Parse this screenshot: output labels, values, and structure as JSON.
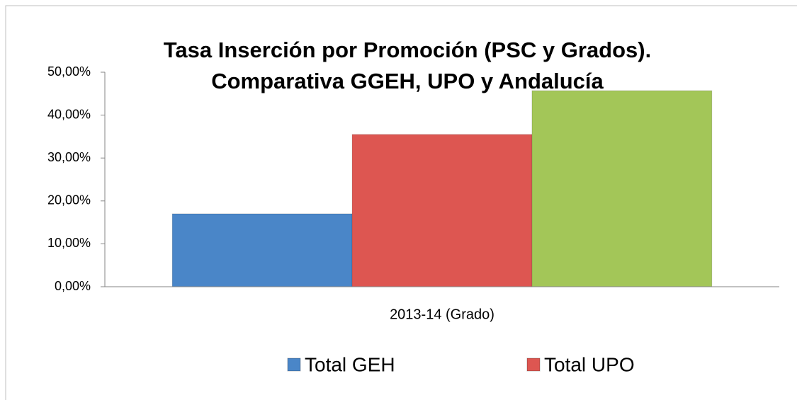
{
  "chart_data": {
    "type": "bar",
    "title": [
      "Tasa Inserción por Promoción (PSC y Grados).",
      "Comparativa GGEH, UPO y Andalucía"
    ],
    "categories": [
      "2013-14 (Grado)"
    ],
    "series": [
      {
        "name": "Total GEH",
        "color": "#4a86c8",
        "values": [
          17.0
        ]
      },
      {
        "name": "Total UPO",
        "color": "#dd5651",
        "values": [
          35.5
        ]
      },
      {
        "color": "#a3c658",
        "values": [
          45.7
        ]
      }
    ],
    "ylim": [
      0,
      50
    ],
    "yticks": [
      {
        "value": 0,
        "label": "0,00%"
      },
      {
        "value": 10,
        "label": "10,00%"
      },
      {
        "value": 20,
        "label": "20,00%"
      },
      {
        "value": 30,
        "label": "30,00%"
      },
      {
        "value": 40,
        "label": "40,00%"
      },
      {
        "value": 50,
        "label": "50,00%"
      }
    ]
  }
}
